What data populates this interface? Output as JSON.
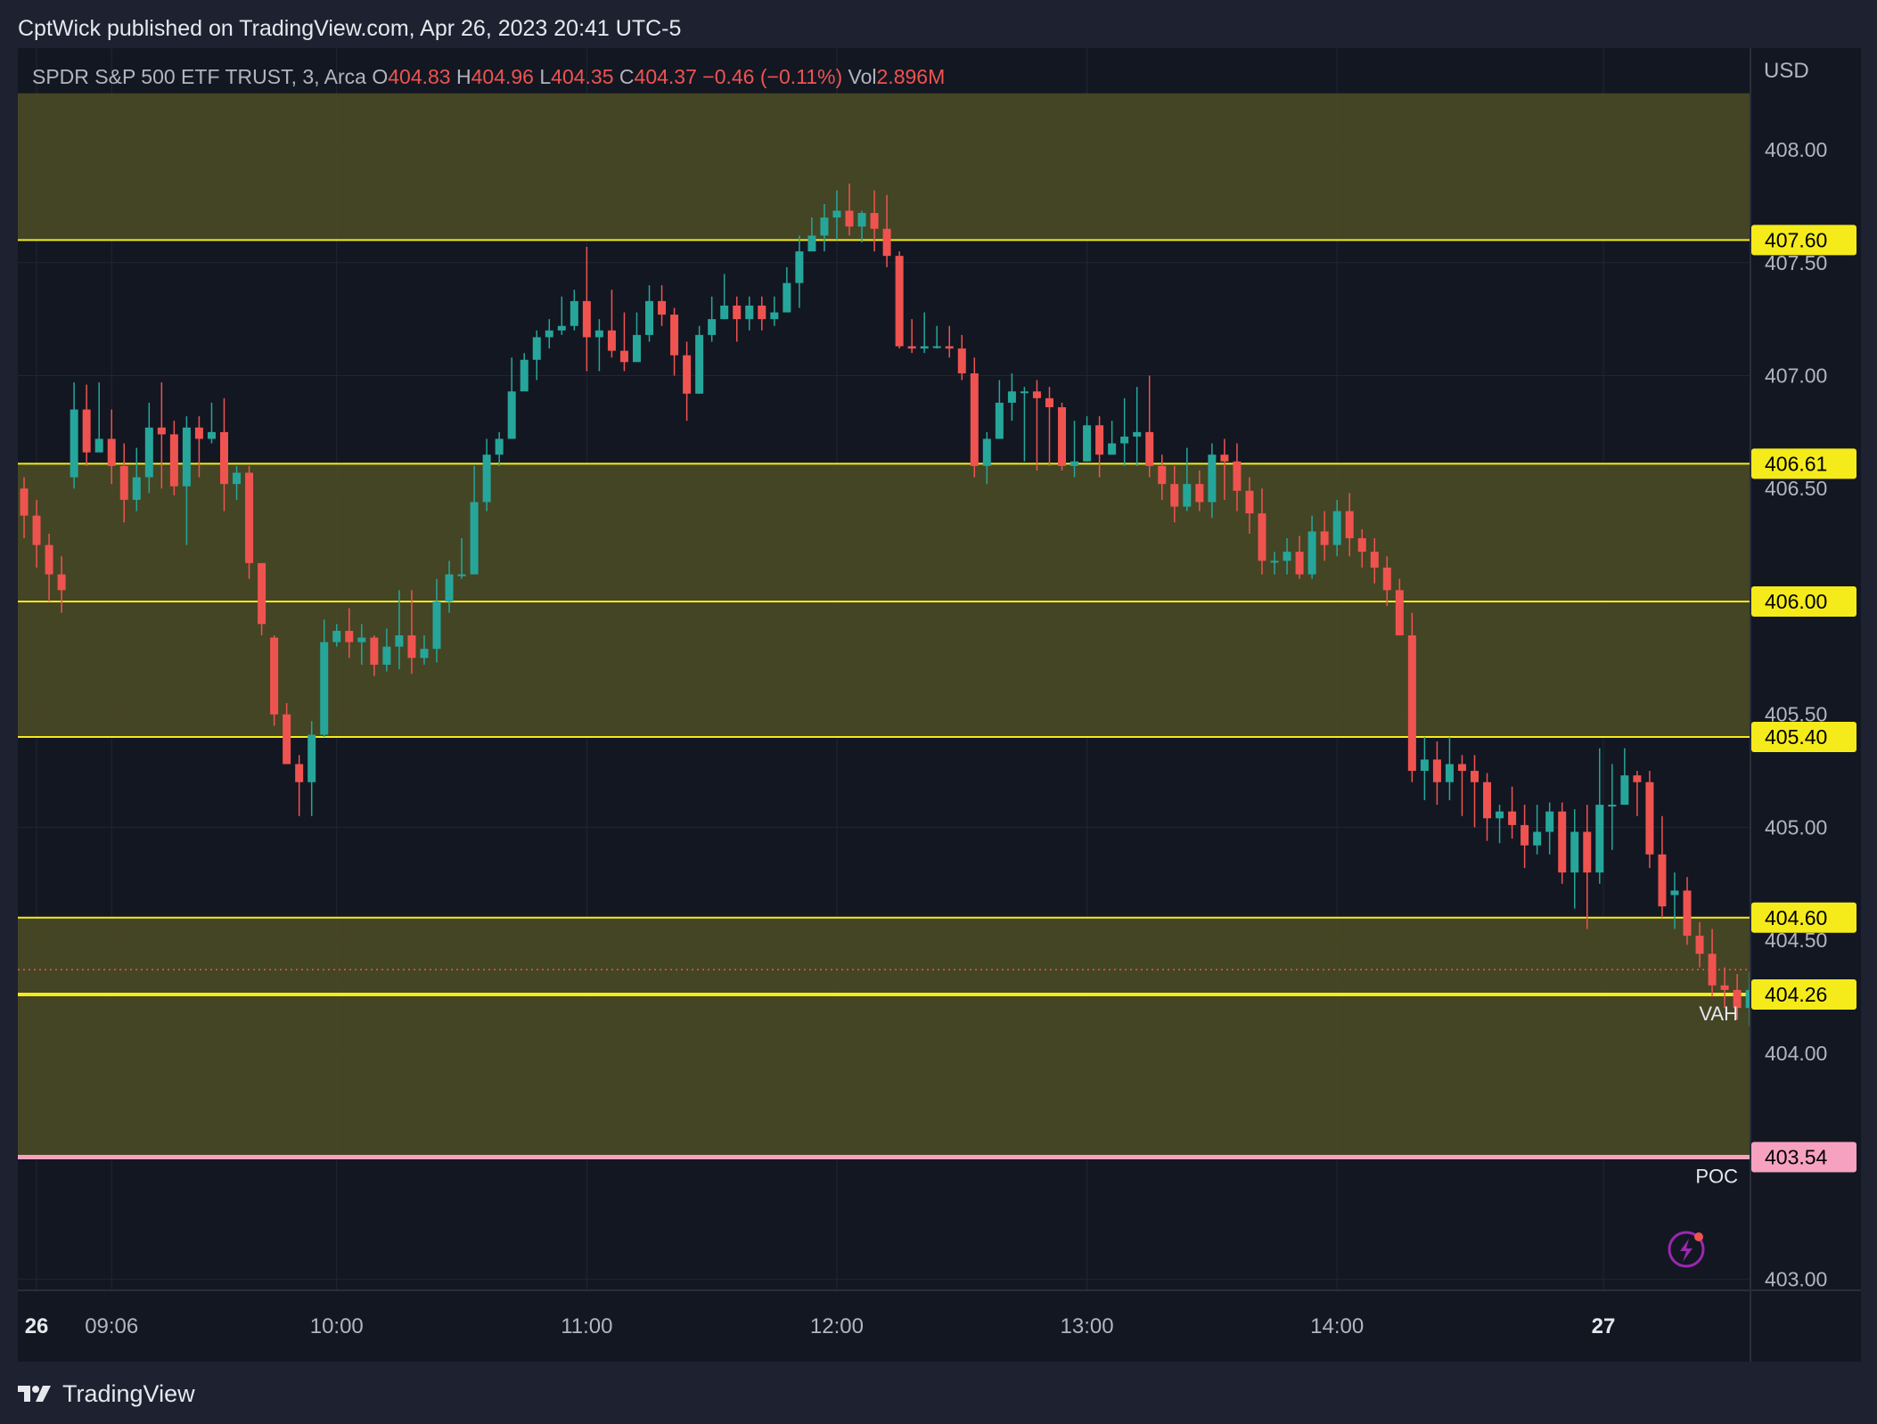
{
  "header": {
    "published_text": "CptWick published on TradingView.com, Apr 26, 2023 20:41 UTC-5"
  },
  "legend": {
    "symbol": "SPDR S&P 500 ETF TRUST, 3, Arca",
    "o_label": "O",
    "o_value": "404.83",
    "h_label": "H",
    "h_value": "404.96",
    "l_label": "L",
    "l_value": "404.35",
    "c_label": "C",
    "c_value": "404.37",
    "change": "−0.46 (−0.11%)",
    "vol_label": "Vol",
    "vol_value": "2.896M"
  },
  "footer": {
    "brand": "TradingView"
  },
  "colors": {
    "up": "#26a69a",
    "down": "#ef5350",
    "level": "#f5eb1a",
    "zone": "#4a4a25",
    "poc": "#f7a1c0",
    "grid": "#222634",
    "text": "#b2b5be",
    "background": "#131722"
  },
  "chart_data": {
    "type": "candlestick",
    "currency": "USD",
    "ylim": [
      402.95,
      408.45
    ],
    "y_ticks": [
      "408.00",
      "407.50",
      "407.00",
      "406.50",
      "405.50",
      "405.00",
      "404.50",
      "404.00",
      "403.00"
    ],
    "x_ticks": [
      {
        "label": "26",
        "bar": 1.5,
        "bold": true
      },
      {
        "label": "09:06",
        "bar": 7.5
      },
      {
        "label": "10:00",
        "bar": 25.5
      },
      {
        "label": "11:00",
        "bar": 45.5
      },
      {
        "label": "12:00",
        "bar": 65.5
      },
      {
        "label": "13:00",
        "bar": 85.5
      },
      {
        "label": "14:00",
        "bar": 105.5
      },
      {
        "label": "27",
        "bar": 126.8,
        "bold": true
      }
    ],
    "bar_count": 138,
    "zones": [
      [
        407.6,
        408.25
      ],
      [
        406.0,
        406.61
      ],
      [
        405.4,
        406.0
      ],
      [
        404.26,
        404.6
      ],
      [
        403.54,
        404.26
      ]
    ],
    "levels": [
      {
        "price": 407.6,
        "label": "407.60"
      },
      {
        "price": 406.61,
        "label": "406.61"
      },
      {
        "price": 406.0,
        "label": "406.00"
      },
      {
        "price": 405.4,
        "label": "405.40"
      },
      {
        "price": 404.6,
        "label": "404.60"
      },
      {
        "price": 404.26,
        "label": "404.26",
        "tag": "VAH",
        "thick": true
      },
      {
        "price": 403.54,
        "label": "403.54",
        "tag": "POC",
        "color": "pink"
      }
    ],
    "candles": [
      [
        406.5,
        406.38,
        406.55,
        406.28
      ],
      [
        406.38,
        406.25,
        406.45,
        406.15
      ],
      [
        406.25,
        406.12,
        406.3,
        406.0
      ],
      [
        406.12,
        406.05,
        406.2,
        405.95
      ],
      [
        406.55,
        406.85,
        406.97,
        406.5
      ],
      [
        406.85,
        406.66,
        406.96,
        406.6
      ],
      [
        406.66,
        406.72,
        406.97,
        406.7
      ],
      [
        406.72,
        406.6,
        406.85,
        406.52
      ],
      [
        406.6,
        406.45,
        406.7,
        406.35
      ],
      [
        406.45,
        406.55,
        406.68,
        406.4
      ],
      [
        406.55,
        406.77,
        406.88,
        406.48
      ],
      [
        406.77,
        406.74,
        406.97,
        406.5
      ],
      [
        406.74,
        406.51,
        406.8,
        406.47
      ],
      [
        406.51,
        406.77,
        406.82,
        406.25
      ],
      [
        406.77,
        406.72,
        406.82,
        406.55
      ],
      [
        406.72,
        406.75,
        406.88,
        406.7
      ],
      [
        406.75,
        406.52,
        406.9,
        406.4
      ],
      [
        406.52,
        406.57,
        406.6,
        406.45
      ],
      [
        406.57,
        406.17,
        406.6,
        406.1
      ],
      [
        406.17,
        405.9,
        406.1,
        405.85
      ],
      [
        405.84,
        405.5,
        405.85,
        405.45
      ],
      [
        405.5,
        405.28,
        405.55,
        405.35
      ],
      [
        405.28,
        405.2,
        405.32,
        405.05
      ],
      [
        405.2,
        405.41,
        405.47,
        405.05
      ],
      [
        405.41,
        405.82,
        405.92,
        405.4
      ],
      [
        405.82,
        405.87,
        405.9,
        405.8
      ],
      [
        405.87,
        405.82,
        405.97,
        405.75
      ],
      [
        405.82,
        405.84,
        405.9,
        405.72
      ],
      [
        405.84,
        405.72,
        405.85,
        405.67
      ],
      [
        405.72,
        405.8,
        405.88,
        405.69
      ],
      [
        405.8,
        405.85,
        406.05,
        405.7
      ],
      [
        405.85,
        405.75,
        406.05,
        405.68
      ],
      [
        405.75,
        405.79,
        405.85,
        405.72
      ],
      [
        405.79,
        406.0,
        406.1,
        405.73
      ],
      [
        406.0,
        406.12,
        406.18,
        405.95
      ],
      [
        406.12,
        406.12,
        406.28,
        406.1
      ],
      [
        406.12,
        406.44,
        406.6,
        406.12
      ],
      [
        406.44,
        406.65,
        406.72,
        406.4
      ],
      [
        406.65,
        406.72,
        406.75,
        406.6
      ],
      [
        406.72,
        406.93,
        407.08,
        406.9
      ],
      [
        406.93,
        407.07,
        407.1,
        406.95
      ],
      [
        407.07,
        407.17,
        407.2,
        406.98
      ],
      [
        407.17,
        407.2,
        407.25,
        407.12
      ],
      [
        407.2,
        407.22,
        407.35,
        407.18
      ],
      [
        407.22,
        407.33,
        407.38,
        407.2
      ],
      [
        407.33,
        407.17,
        407.57,
        407.02
      ],
      [
        407.17,
        407.2,
        407.25,
        407.02
      ],
      [
        407.2,
        407.11,
        407.38,
        407.08
      ],
      [
        407.11,
        407.06,
        407.28,
        407.02
      ],
      [
        407.06,
        407.18,
        407.28,
        407.1
      ],
      [
        407.18,
        407.33,
        407.4,
        407.15
      ],
      [
        407.33,
        407.27,
        407.4,
        407.22
      ],
      [
        407.27,
        407.09,
        407.3,
        407.0
      ],
      [
        407.09,
        406.92,
        407.15,
        406.8
      ],
      [
        406.92,
        407.18,
        407.22,
        406.92
      ],
      [
        407.18,
        407.25,
        407.35,
        407.15
      ],
      [
        407.25,
        407.31,
        407.45,
        407.25
      ],
      [
        407.31,
        407.25,
        407.35,
        407.15
      ],
      [
        407.25,
        407.31,
        407.35,
        407.2
      ],
      [
        407.31,
        407.25,
        407.35,
        407.2
      ],
      [
        407.25,
        407.28,
        407.35,
        407.22
      ],
      [
        407.28,
        407.41,
        407.48,
        407.28
      ],
      [
        407.41,
        407.55,
        407.62,
        407.3
      ],
      [
        407.55,
        407.62,
        407.7,
        407.59
      ],
      [
        407.62,
        407.7,
        407.76,
        407.55
      ],
      [
        407.7,
        407.73,
        407.82,
        407.6
      ],
      [
        407.73,
        407.66,
        407.85,
        407.62
      ],
      [
        407.66,
        407.72,
        407.73,
        407.59
      ],
      [
        407.72,
        407.65,
        407.82,
        407.55
      ],
      [
        407.65,
        407.53,
        407.8,
        407.48
      ],
      [
        407.53,
        407.13,
        407.55,
        407.12
      ],
      [
        407.13,
        407.12,
        407.25,
        407.1
      ],
      [
        407.12,
        407.13,
        407.28,
        407.1
      ],
      [
        407.13,
        407.13,
        407.22,
        407.12
      ],
      [
        407.13,
        407.12,
        407.22,
        407.08
      ],
      [
        407.12,
        407.01,
        407.18,
        406.98
      ],
      [
        407.01,
        406.6,
        407.08,
        406.55
      ],
      [
        406.6,
        406.72,
        406.75,
        406.52
      ],
      [
        406.72,
        406.88,
        406.98,
        406.72
      ],
      [
        406.88,
        406.93,
        407.01,
        406.8
      ],
      [
        406.93,
        406.93,
        406.95,
        406.62
      ],
      [
        406.93,
        406.9,
        406.98,
        406.58
      ],
      [
        406.9,
        406.86,
        406.95,
        406.6
      ],
      [
        406.86,
        406.6,
        406.88,
        406.58
      ],
      [
        406.6,
        406.62,
        406.8,
        406.55
      ],
      [
        406.62,
        406.78,
        406.82,
        406.62
      ],
      [
        406.78,
        406.65,
        406.82,
        406.55
      ],
      [
        406.65,
        406.7,
        406.8,
        406.65
      ],
      [
        406.7,
        406.73,
        406.9,
        406.6
      ],
      [
        406.73,
        406.75,
        406.95,
        406.6
      ],
      [
        406.75,
        406.6,
        407.0,
        406.55
      ],
      [
        406.6,
        406.52,
        406.65,
        406.45
      ],
      [
        406.52,
        406.42,
        406.6,
        406.35
      ],
      [
        406.42,
        406.52,
        406.68,
        406.4
      ],
      [
        406.52,
        406.44,
        406.58,
        406.4
      ],
      [
        406.44,
        406.65,
        406.7,
        406.37
      ],
      [
        406.65,
        406.62,
        406.72,
        406.45
      ],
      [
        406.62,
        406.49,
        406.7,
        406.4
      ],
      [
        406.49,
        406.39,
        406.55,
        406.3
      ],
      [
        406.39,
        406.18,
        406.5,
        406.12
      ],
      [
        406.18,
        406.18,
        406.22,
        406.12
      ],
      [
        406.18,
        406.22,
        406.28,
        406.12
      ],
      [
        406.22,
        406.12,
        406.29,
        406.1
      ],
      [
        406.12,
        406.31,
        406.38,
        406.1
      ],
      [
        406.31,
        406.25,
        406.4,
        406.18
      ],
      [
        406.25,
        406.4,
        406.45,
        406.2
      ],
      [
        406.4,
        406.28,
        406.48,
        406.2
      ],
      [
        406.28,
        406.22,
        406.32,
        406.15
      ],
      [
        406.22,
        406.15,
        406.28,
        406.08
      ],
      [
        406.15,
        406.05,
        406.2,
        405.98
      ],
      [
        406.05,
        405.85,
        406.1,
        405.85
      ],
      [
        405.85,
        405.25,
        405.95,
        405.2
      ],
      [
        405.25,
        405.3,
        405.4,
        405.12
      ],
      [
        405.3,
        405.2,
        405.38,
        405.1
      ],
      [
        405.2,
        405.28,
        405.4,
        405.12
      ],
      [
        405.28,
        405.25,
        405.32,
        405.05
      ],
      [
        405.25,
        405.2,
        405.32,
        405.0
      ],
      [
        405.2,
        405.04,
        405.24,
        404.94
      ],
      [
        405.04,
        405.07,
        405.1,
        404.93
      ],
      [
        405.07,
        405.01,
        405.18,
        404.95
      ],
      [
        405.01,
        404.92,
        405.1,
        404.82
      ],
      [
        404.92,
        404.98,
        405.1,
        404.88
      ],
      [
        404.98,
        405.07,
        405.11,
        404.88
      ],
      [
        405.07,
        404.8,
        405.11,
        404.75
      ],
      [
        404.8,
        404.98,
        405.08,
        404.64
      ],
      [
        404.98,
        404.8,
        405.1,
        404.55
      ],
      [
        404.8,
        405.1,
        405.35,
        404.75
      ],
      [
        405.1,
        405.1,
        405.28,
        404.9
      ],
      [
        405.1,
        405.23,
        405.35,
        405.1
      ],
      [
        405.23,
        405.2,
        405.25,
        405.05
      ],
      [
        405.2,
        404.88,
        405.25,
        404.82
      ],
      [
        404.88,
        404.65,
        405.05,
        404.6
      ]
    ],
    "tail": [
      [
        404.7,
        404.72,
        404.8,
        404.55
      ],
      [
        404.72,
        404.52,
        404.78,
        404.48
      ],
      [
        404.52,
        404.44,
        404.58,
        404.38
      ],
      [
        404.44,
        404.3,
        404.55,
        404.25
      ],
      [
        404.3,
        404.28,
        404.38,
        404.2
      ],
      [
        404.28,
        404.2,
        404.35,
        404.15
      ],
      [
        404.2,
        404.28,
        404.36,
        404.12
      ],
      [
        404.28,
        404.25,
        404.38,
        404.1
      ],
      [
        404.25,
        404.2,
        404.32,
        404.12
      ],
      [
        404.2,
        404.35,
        404.4,
        404.08
      ],
      [
        404.35,
        404.22,
        404.38,
        404.15
      ],
      [
        404.22,
        404.12,
        404.35,
        404.05
      ],
      [
        404.12,
        404.2,
        404.25,
        404.05
      ],
      [
        404.2,
        404.6,
        404.62,
        404.2
      ],
      [
        404.6,
        404.6,
        404.65,
        404.5
      ],
      [
        404.6,
        404.5,
        404.7,
        404.4
      ],
      [
        404.5,
        404.1,
        404.52,
        404.05
      ],
      [
        404.1,
        404.06,
        404.15,
        404.0
      ],
      [
        404.06,
        404.12,
        404.22,
        404.0
      ],
      [
        404.12,
        404.22,
        404.3,
        404.05
      ],
      [
        404.22,
        404.27,
        404.3,
        404.18
      ],
      [
        404.27,
        404.18,
        404.35,
        404.15
      ],
      [
        404.18,
        404.0,
        404.25,
        403.95
      ],
      [
        404.0,
        403.95,
        404.1,
        403.88
      ],
      [
        403.95,
        404.05,
        404.12,
        403.9
      ],
      [
        404.05,
        403.98,
        404.1,
        403.88
      ],
      [
        403.98,
        403.94,
        404.08,
        403.88
      ],
      [
        403.94,
        404.08,
        404.18,
        403.82
      ],
      [
        404.08,
        404.17,
        404.22,
        403.9
      ],
      [
        404.17,
        404.85,
        404.88,
        404.15
      ],
      [
        404.83,
        404.37,
        404.96,
        404.35
      ]
    ]
  }
}
